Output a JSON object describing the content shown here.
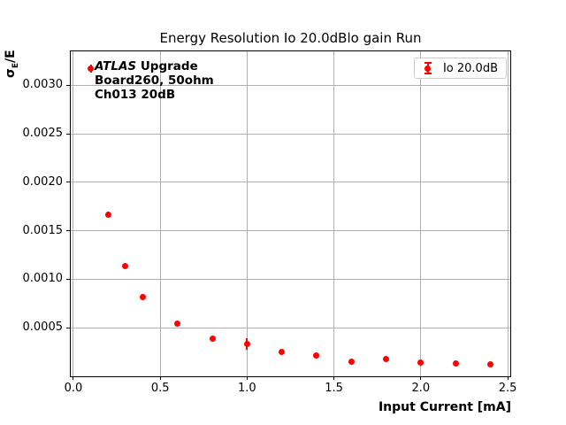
{
  "figure": {
    "background": "#ffffff"
  },
  "chart_data": {
    "type": "scatter",
    "title": "Energy Resolution Io 20.0dBlo gain Run",
    "xlabel": "Input Current [mA]",
    "ylabel": {
      "sigma": "σ",
      "sub": "E",
      "rest": "/E"
    },
    "xlim": [
      -0.015,
      2.515
    ],
    "ylim": [
      0,
      0.00335
    ],
    "grid": true,
    "grid_color": "#b0b0b0",
    "xticks": {
      "values": [
        0.0,
        0.5,
        1.0,
        1.5,
        2.0,
        2.5
      ],
      "labels": [
        "0.0",
        "0.5",
        "1.0",
        "1.5",
        "2.0",
        "2.5"
      ]
    },
    "yticks": {
      "values": [
        0.0005,
        0.001,
        0.0015,
        0.002,
        0.0025,
        0.003
      ],
      "labels": [
        "0.0005",
        "0.0010",
        "0.0015",
        "0.0020",
        "0.0025",
        "0.0030"
      ]
    },
    "series": [
      {
        "name": "Io 20.0dB",
        "color": "#ff0000",
        "marker": "circle",
        "x": [
          0.1,
          0.2,
          0.3,
          0.4,
          0.6,
          0.8,
          1.0,
          1.2,
          1.4,
          1.6,
          1.8,
          2.0,
          2.2,
          2.4
        ],
        "y": [
          0.00317,
          0.00167,
          0.00114,
          0.00082,
          0.00054,
          0.00039,
          0.00033,
          0.00025,
          0.00021,
          0.00015,
          0.00018,
          0.00014,
          0.00013,
          0.00012
        ],
        "yerr": [
          4e-05,
          3e-05,
          2e-05,
          2e-05,
          2e-05,
          2e-05,
          6e-05,
          2e-05,
          2e-05,
          2e-05,
          2e-05,
          2e-05,
          2e-05,
          2e-05
        ]
      }
    ],
    "legend": {
      "position": "upper-right",
      "entries": [
        {
          "label": "Io 20.0dB",
          "color": "#ff0000",
          "glyph": "errorbar-point"
        }
      ]
    },
    "annotation": {
      "line1_italic": "ATLAS",
      "line1_bold": "Upgrade",
      "line2": "Board260, 50ohm",
      "line3": "Ch013 20dB"
    }
  }
}
